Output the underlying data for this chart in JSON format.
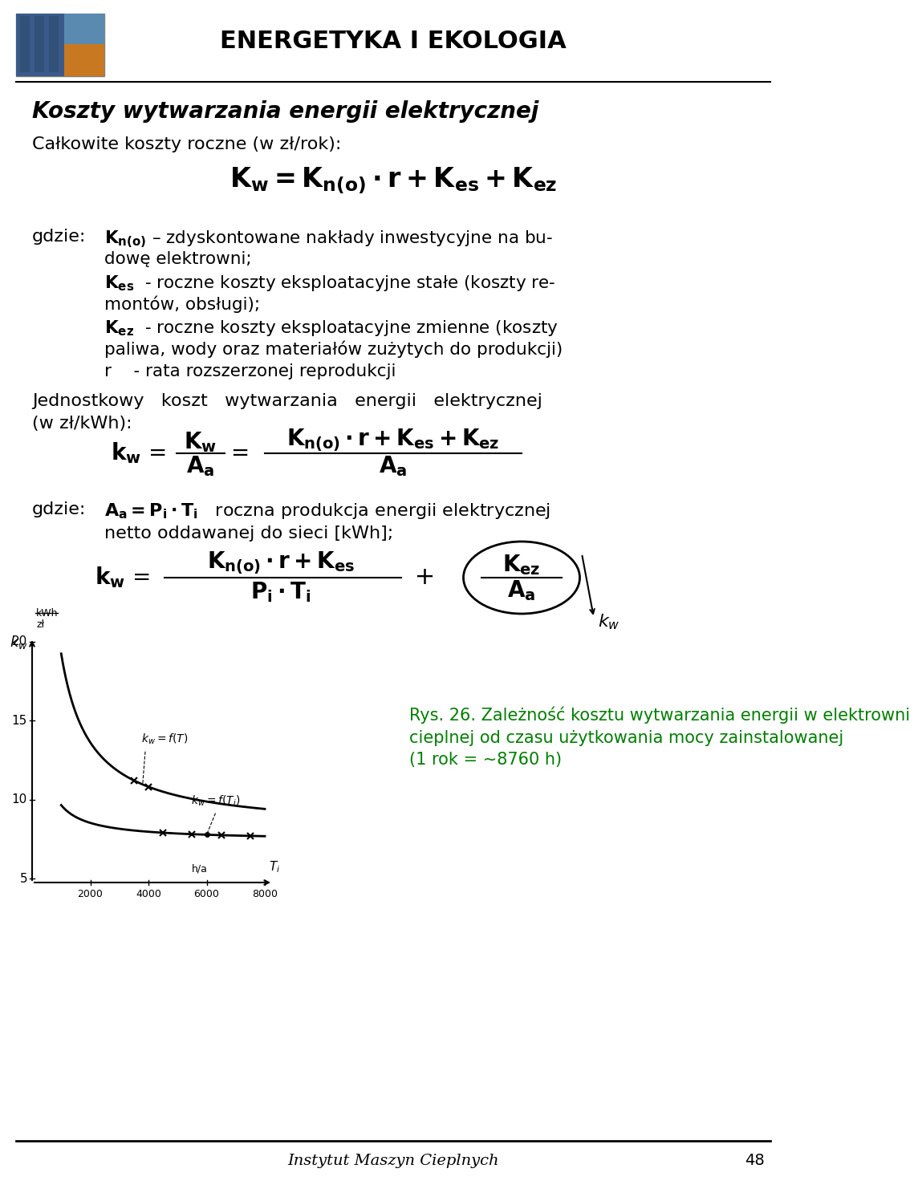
{
  "bg_color": "#ffffff",
  "header_text": "ENERGETYKA I EKOLOGIA",
  "footer_text": "Instytut Maszyn Cieplnych",
  "page_number": "48",
  "title": "Koszty wytwarzania energii elektrycznej",
  "subtitle": "Całkowite koszty roczne (w zł/rok):",
  "formula1": "$\\mathbf{K_w = K_{n(o)} \\cdot r + K_{es} + K_{ez}}$",
  "gdzie_label": "gdzie:",
  "gdzie_lines": [
    "$\\mathbf{K_{n(o)}}$ – zdyskontowane nakłady inwestycyjne na bu-",
    "dowę elektrowni;",
    "$\\mathbf{K_{es}}$  - roczne koszty eksploatacyjne stałe (koszty re-",
    "montów, obsługi);",
    "$\\mathbf{K_{ez}}$  - roczne koszty eksploatacyjne zmienne (koszty",
    "paliwa, wody oraz materiałów zużytych do produkcji)",
    "r    - rata rozszerzonej reprodukcji"
  ],
  "jednostkowy_line1": "Jednostkowy    koszt    wytwarzania    energii    elektrycznej",
  "jednostkowy_line2": "(w zł/kWh):",
  "formula2_num": "$\\mathbf{K_w}$",
  "formula2_den": "$\\mathbf{A_a}$",
  "formula2_num2": "$\\mathbf{K_{n(o)} \\cdot r + K_{es} + K_{ez}}$",
  "formula2_den2": "$\\mathbf{A_a}$",
  "gdzie2_label": "gdzie:",
  "gdzie2_text": "$\\mathbf{A_a = P_i \\cdot T_i}$   roczna produkcja energii elektrycznej",
  "gdzie2_line2": "netto oddawanej do sieci [kWh];",
  "formula3_num": "$\\mathbf{K_{n(o)} \\cdot r + K_{es}}$",
  "formula3_den": "$\\mathbf{P_i \\cdot T_i}$",
  "rys_text": "Rys. 26. Zależność kosztu wytwarzania energii w elektrowni cieplnej od czasu użytkowania mocy zainstalowanej\n(1 rok = ~8760 h)",
  "green_color": "#008000",
  "black_color": "#000000"
}
